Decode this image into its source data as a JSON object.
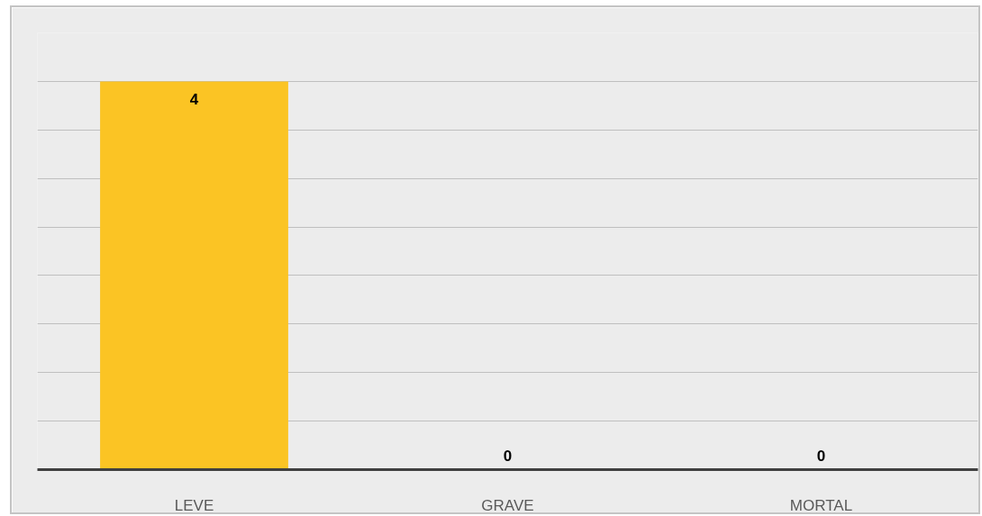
{
  "chart_data": {
    "type": "bar",
    "categories": [
      "LEVE",
      "GRAVE",
      "MORTAL"
    ],
    "values": [
      4,
      0,
      0
    ],
    "color": "#fbc424",
    "data_labels": true,
    "ylim": [
      0,
      4.5
    ],
    "yticks": [
      {
        "value": 0,
        "label": null
      },
      {
        "value": 0.5,
        "label": null
      },
      {
        "value": 1,
        "label": null
      },
      {
        "value": 1.5,
        "label": null
      },
      {
        "value": 2,
        "label": null
      },
      {
        "value": 2.5,
        "label": null
      },
      {
        "value": 3,
        "label": null
      },
      {
        "value": 3.5,
        "label": null
      },
      {
        "value": 4,
        "label": null
      },
      {
        "value": 4.5,
        "label": null
      }
    ],
    "tick_labels": "x",
    "grid": "y"
  }
}
